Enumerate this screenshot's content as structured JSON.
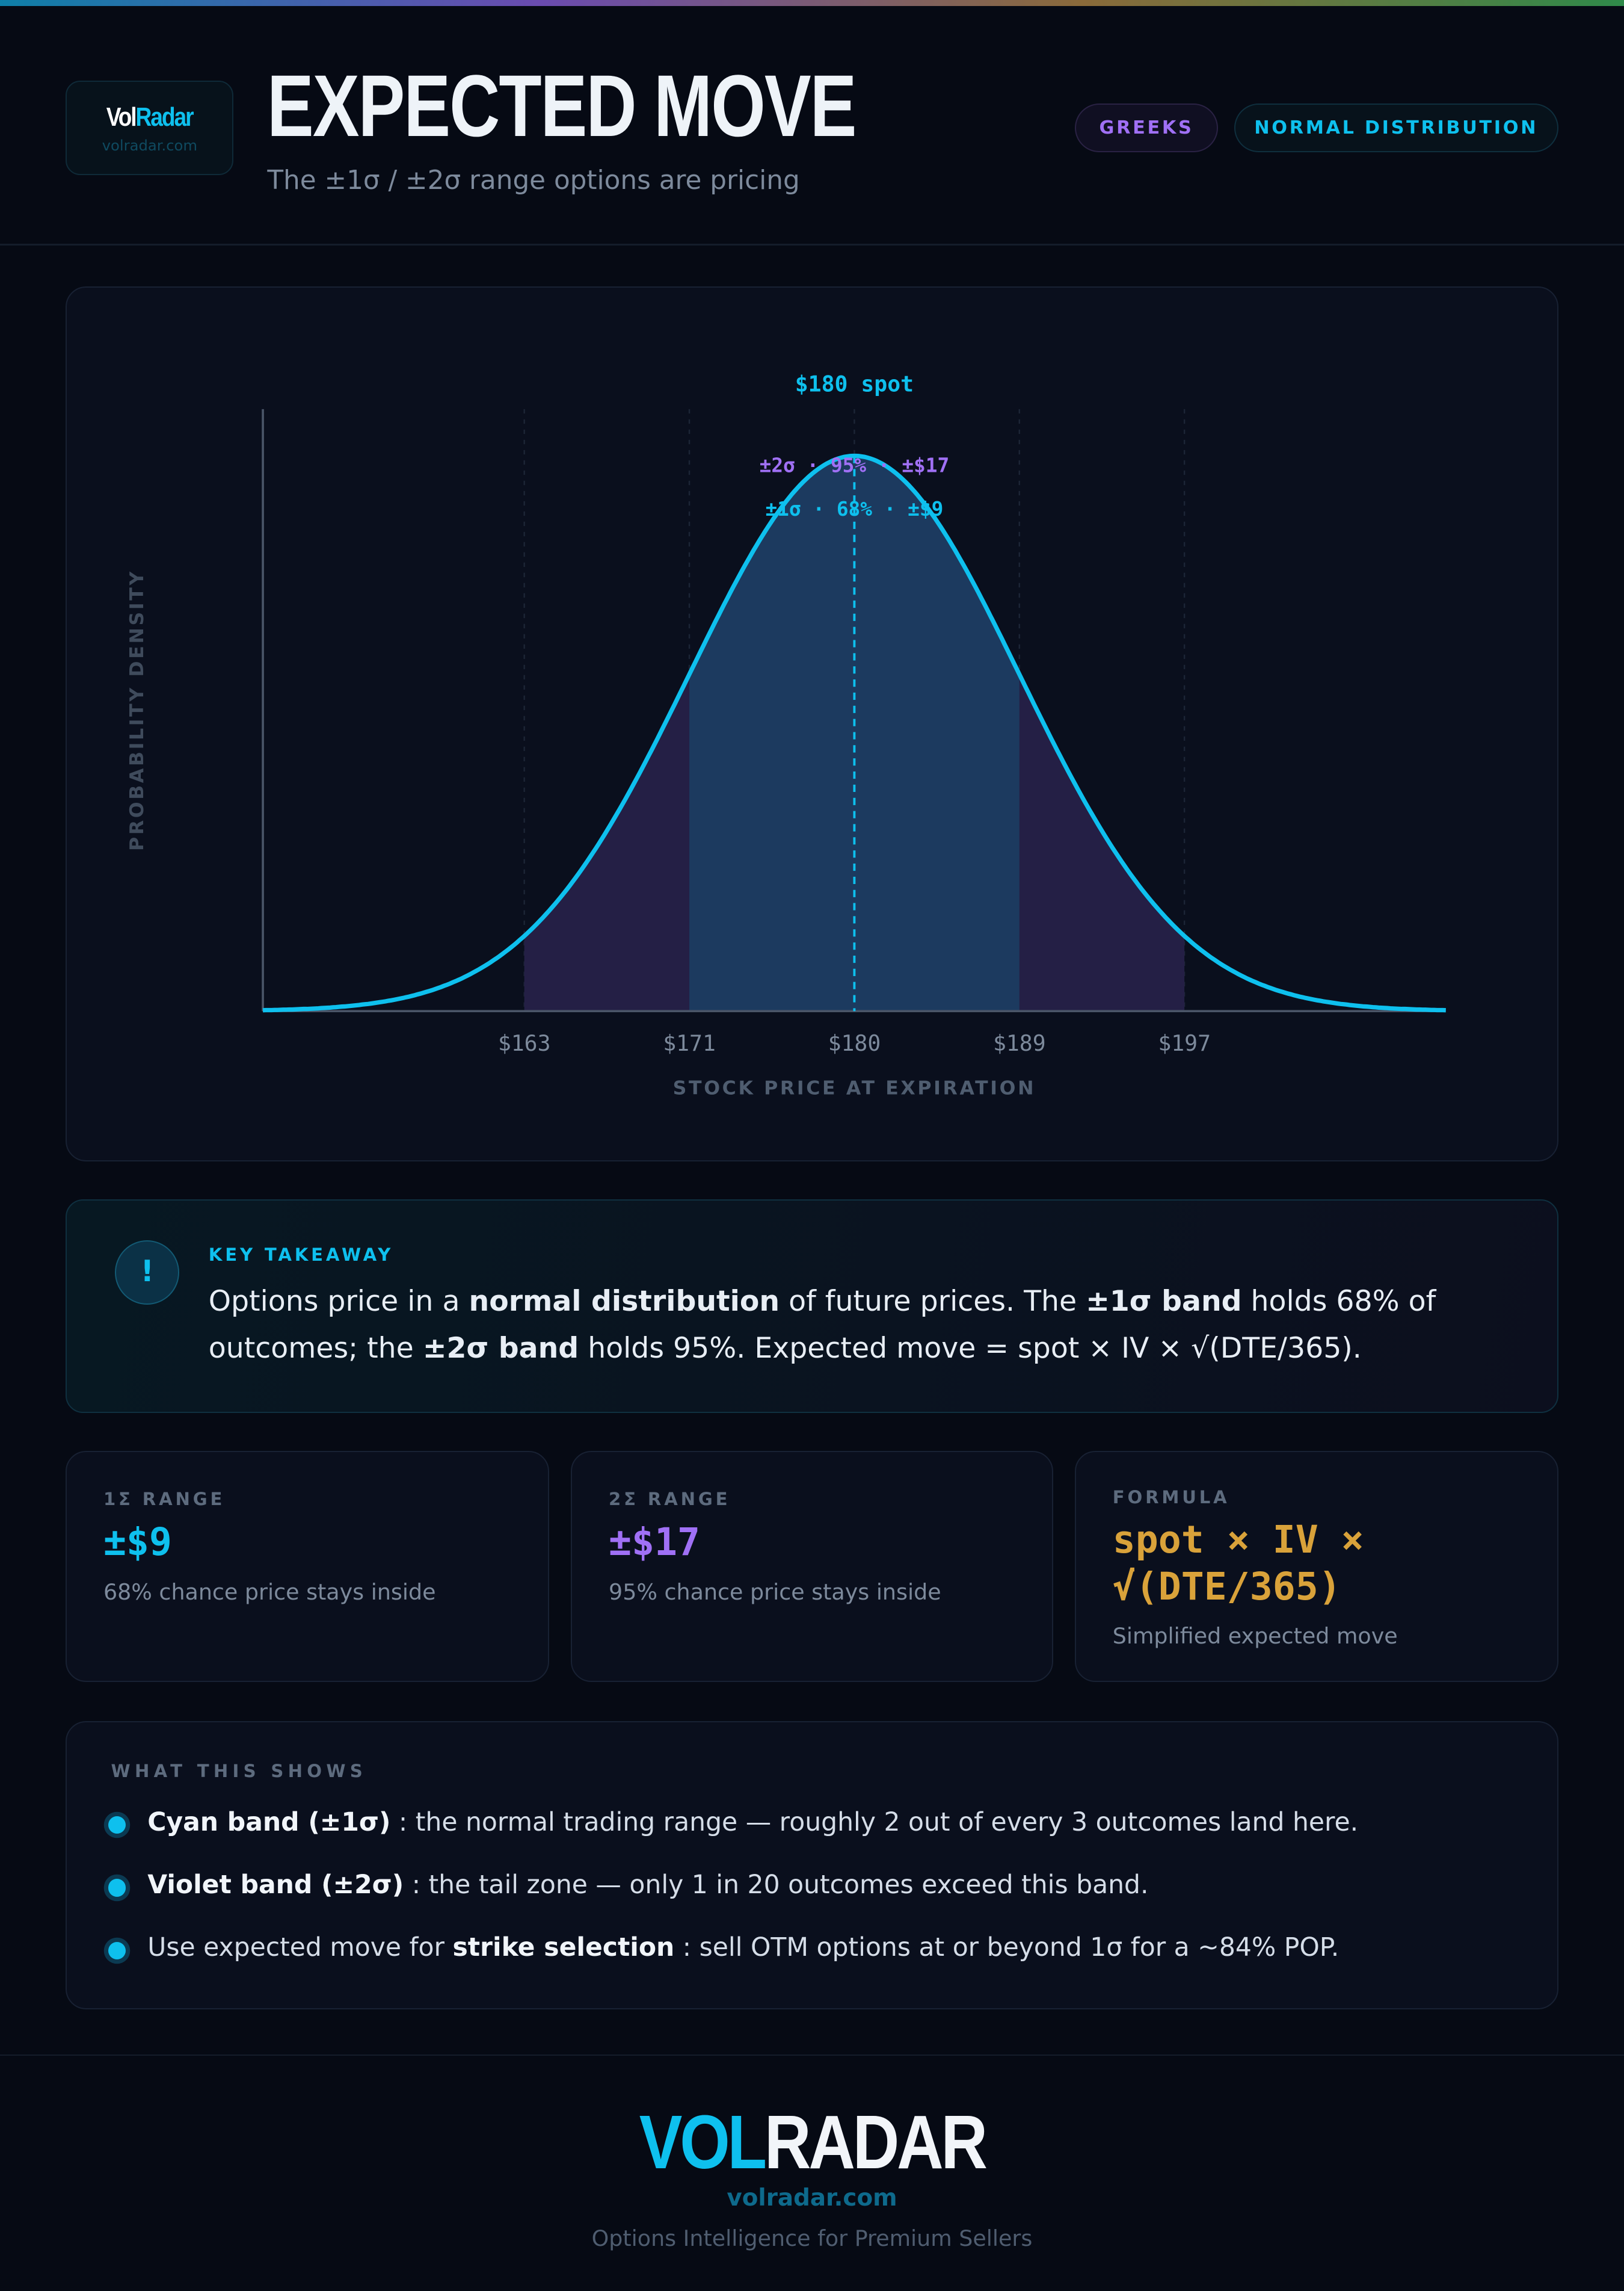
{
  "header": {
    "logo_vol": "Vol",
    "logo_radar": "Radar",
    "logo_url": "volradar.com",
    "title": "EXPECTED MOVE",
    "subtitle": "The ±1σ / ±2σ range options are pricing",
    "tags": [
      "GREEKS",
      "NORMAL DISTRIBUTION"
    ]
  },
  "colors": {
    "cyan": "#0ec0ee",
    "violet": "#a070f5",
    "gold": "#d9a23a",
    "background": "#060a14"
  },
  "chart_data": {
    "type": "area",
    "spot_label": "$180 spot",
    "spot": 180,
    "sigma_labels": {
      "two": "±2σ · 95% · ±$17",
      "one": "±1σ · 68% · ±$9"
    },
    "x_ticks": [
      "$163",
      "$171",
      "$180",
      "$189",
      "$197"
    ],
    "xlabel": "STOCK PRICE AT EXPIRATION",
    "ylabel": "PROBABILITY DENSITY",
    "bands": [
      {
        "name": "±1σ",
        "range": [
          171,
          189
        ]
      },
      {
        "name": "±2σ",
        "range": [
          163,
          197
        ]
      }
    ],
    "grid": true
  },
  "takeaway": {
    "icon": "exclamation-icon",
    "label": "KEY TAKEAWAY",
    "t1": "Options price in a ",
    "b1": "normal distribution",
    "t2": " of future prices. The ",
    "b2": "±1σ band",
    "t3": " holds 68% of outcomes; the ",
    "b3": "±2σ band",
    "t4": " holds 95%. Expected move = spot × IV × √(DTE/365)."
  },
  "stats": [
    {
      "label": "1Σ RANGE",
      "value": "±$9",
      "desc": "68% chance price stays inside"
    },
    {
      "label": "2Σ RANGE",
      "value": "±$17",
      "desc": "95% chance price stays inside"
    },
    {
      "label": "FORMULA",
      "value": "spot × IV × √(DTE/365)",
      "desc": "Simplified expected move"
    }
  ],
  "shows": {
    "label": "WHAT THIS SHOWS",
    "items": [
      {
        "pre": "",
        "bold": "Cyan band (±1σ)",
        "post": " : the normal trading range — roughly 2 out of every 3 outcomes land here."
      },
      {
        "pre": "",
        "bold": "Violet band (±2σ)",
        "post": " : the tail zone — only 1 in 20 outcomes exceed this band."
      },
      {
        "pre": "Use expected move for ",
        "bold": "strike selection",
        "post": " : sell OTM options at or beyond 1σ for a ~84% POP."
      }
    ]
  },
  "footer": {
    "logo_vol": "VOL",
    "logo_radar": "RADAR",
    "url": "volradar.com",
    "tagline": "Options Intelligence for Premium Sellers"
  }
}
